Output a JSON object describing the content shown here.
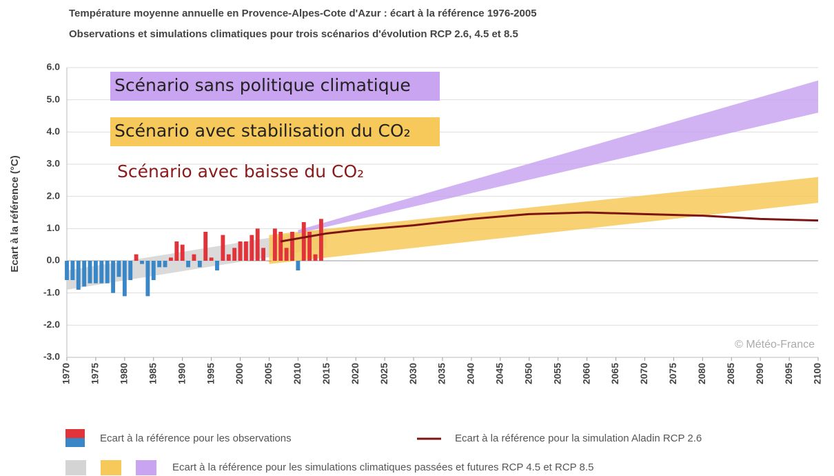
{
  "chart_data": {
    "type": "bar",
    "title": "Température moyenne annuelle en Provence-Alpes-Cote d'Azur : écart à la référence 1976-2005",
    "subtitle": "Observations et simulations climatiques pour trois scénarios d'évolution RCP 2.6, 4.5 et 8.5",
    "ylabel": "Ecart à la référence (°C)",
    "watermark": "© Météo-France",
    "xlim": [
      1970,
      2100
    ],
    "xticks": [
      1970,
      1975,
      1980,
      1985,
      1990,
      1995,
      2000,
      2005,
      2010,
      2015,
      2020,
      2025,
      2030,
      2035,
      2040,
      2045,
      2050,
      2055,
      2060,
      2065,
      2070,
      2075,
      2080,
      2085,
      2090,
      2095,
      2100
    ],
    "ylim": [
      -3,
      6
    ],
    "yticks": [
      {
        "value": -3,
        "label": "-3.0"
      },
      {
        "value": -2,
        "label": "-2.0"
      },
      {
        "value": -1,
        "label": "-1.0"
      },
      {
        "value": 0,
        "label": "0.0"
      },
      {
        "value": 1,
        "label": "1.0"
      },
      {
        "value": 2,
        "label": "2.0"
      },
      {
        "value": 3,
        "label": "3.0"
      },
      {
        "value": 4,
        "label": "4.0"
      },
      {
        "value": 5,
        "label": "5.0"
      },
      {
        "value": 6,
        "label": "6.0"
      }
    ],
    "grid": true,
    "bands": [
      {
        "color": "#d4d4d4",
        "x": [
          1970,
          2015
        ],
        "lower": [
          -0.9,
          0.4
        ],
        "upper": [
          -0.3,
          1.0
        ]
      },
      {
        "color": "#f7c95a",
        "x": [
          2005,
          2100
        ],
        "lower": [
          -0.1,
          1.8
        ],
        "upper": [
          0.8,
          2.6
        ]
      },
      {
        "color": "#c9a4f0",
        "x": [
          2010,
          2100
        ],
        "lower": [
          0.85,
          4.6
        ],
        "upper": [
          0.95,
          5.6
        ]
      }
    ],
    "observations": {
      "positive_color": "#e0343a",
      "negative_color": "#3a87c8",
      "x": [
        1970,
        1971,
        1972,
        1973,
        1974,
        1975,
        1976,
        1977,
        1978,
        1979,
        1980,
        1981,
        1982,
        1983,
        1984,
        1985,
        1986,
        1987,
        1988,
        1989,
        1990,
        1991,
        1992,
        1993,
        1994,
        1995,
        1996,
        1997,
        1998,
        1999,
        2000,
        2001,
        2002,
        2003,
        2004,
        2005,
        2006,
        2007,
        2008,
        2009,
        2010,
        2011,
        2012,
        2013,
        2014
      ],
      "values": [
        -0.6,
        -0.6,
        -0.9,
        -0.8,
        -0.7,
        -0.7,
        -0.7,
        -0.7,
        -1.0,
        -0.5,
        -1.1,
        -0.6,
        0.2,
        -0.1,
        -1.1,
        -0.6,
        -0.2,
        -0.2,
        0.1,
        0.6,
        0.5,
        -0.2,
        0.2,
        -0.2,
        0.9,
        0.1,
        -0.3,
        0.8,
        0.2,
        0.4,
        0.6,
        0.6,
        0.8,
        1.0,
        0.4,
        0.0,
        1.0,
        0.9,
        0.4,
        0.9,
        -0.3,
        1.2,
        0.9,
        0.2,
        1.3
      ]
    },
    "line": {
      "color": "#7d1414",
      "x": [
        2007,
        2015,
        2020,
        2030,
        2040,
        2050,
        2060,
        2070,
        2080,
        2090,
        2100
      ],
      "values": [
        0.6,
        0.85,
        0.95,
        1.1,
        1.3,
        1.45,
        1.5,
        1.45,
        1.4,
        1.3,
        1.25
      ]
    },
    "annotations": [
      {
        "text": "Scénario sans politique climatique",
        "background": "#c9a4f0",
        "color": "#222222"
      },
      {
        "text": "Scénario avec stabilisation du CO₂",
        "background": "#f7c95a",
        "color": "#222222"
      },
      {
        "text": "Scénario avec baisse du CO₂",
        "background": null,
        "color": "#8b1a1a"
      }
    ],
    "legend": [
      "Ecart à la référence pour les observations",
      "Ecart à la référence pour la simulation Aladin RCP 2.6",
      "Ecart à la référence pour les simulations climatiques passées et futures RCP 4.5 et RCP 8.5"
    ]
  }
}
